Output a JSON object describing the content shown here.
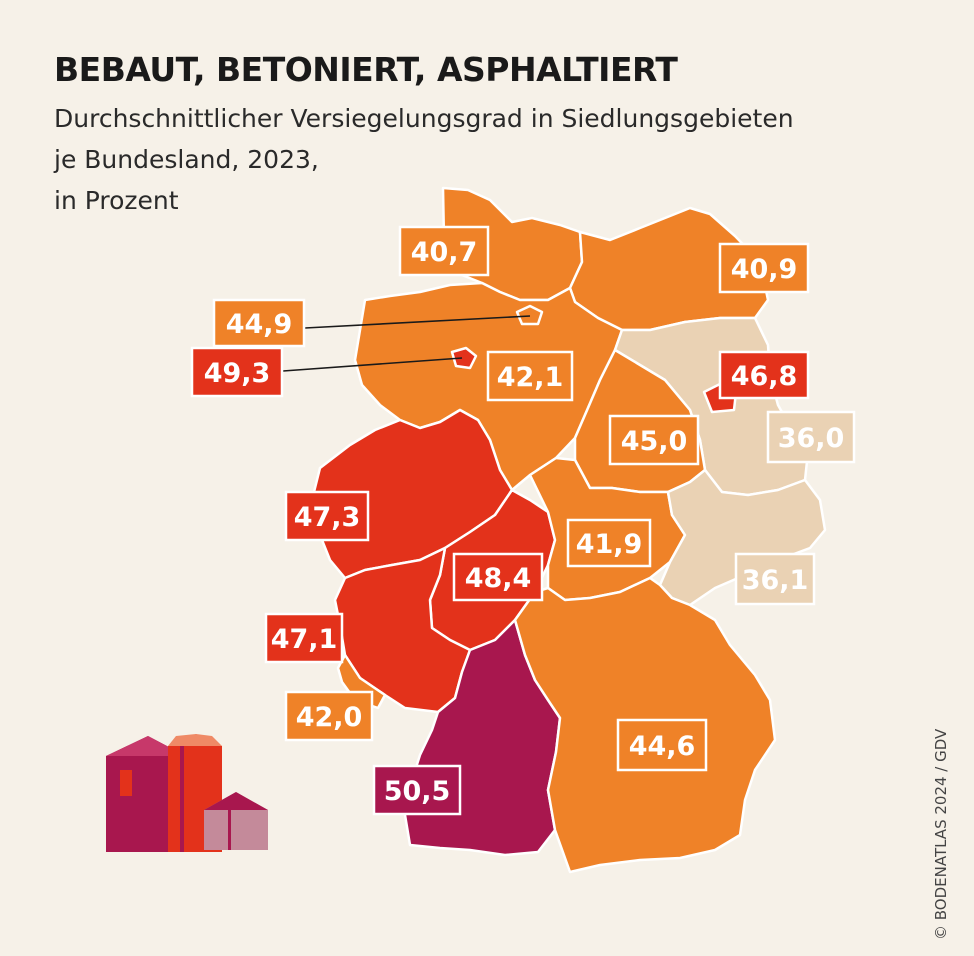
{
  "header": {
    "title": "BEBAUT, BETONIERT, ASPHALTIERT",
    "subtitle_lines": [
      "Durchschnittlicher Versiegelungsgrad in Siedlungsgebieten",
      "je Bundesland, 2023,",
      "in Prozent"
    ]
  },
  "credit": "© BODENATLAS 2024 / GDV",
  "colors": {
    "low": "#ead2b4",
    "mid": "#ef8228",
    "high": "#e3321b",
    "highest": "#a8174e",
    "border": "#ffffff",
    "background": "#f6f1e8"
  },
  "map_data": {
    "unit": "Prozent",
    "regions": [
      {
        "id": "schleswig-holstein",
        "value": "40,7"
      },
      {
        "id": "hamburg",
        "value": "44,9"
      },
      {
        "id": "bremen",
        "value": "49,3"
      },
      {
        "id": "mecklenburg-vorpommern",
        "value": "40,9"
      },
      {
        "id": "niedersachsen",
        "value": "42,1"
      },
      {
        "id": "berlin",
        "value": "46,8"
      },
      {
        "id": "brandenburg",
        "value": "36,0"
      },
      {
        "id": "sachsen-anhalt",
        "value": "45,0"
      },
      {
        "id": "nordrhein-westfalen",
        "value": "47,3"
      },
      {
        "id": "hessen",
        "value": "48,4"
      },
      {
        "id": "thueringen",
        "value": "41,9"
      },
      {
        "id": "sachsen",
        "value": "36,1"
      },
      {
        "id": "rheinland-pfalz",
        "value": "47,1"
      },
      {
        "id": "saarland",
        "value": "42,0"
      },
      {
        "id": "baden-wuerttemberg",
        "value": "50,5"
      },
      {
        "id": "bayern",
        "value": "44,6"
      }
    ]
  }
}
